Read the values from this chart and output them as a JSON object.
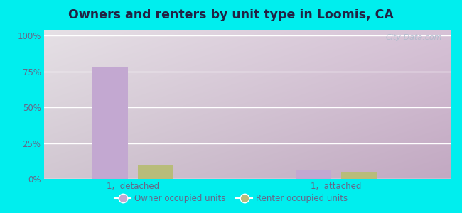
{
  "title": "Owners and renters by unit type in Loomis, CA",
  "categories": [
    "1,  detached",
    "1,  attached"
  ],
  "owner_values": [
    78,
    6
  ],
  "renter_values": [
    10,
    5
  ],
  "owner_color": "#c3a8d1",
  "renter_color": "#b8bc7a",
  "outer_bg": "#00eeee",
  "yticks": [
    0,
    25,
    50,
    75,
    100
  ],
  "ytick_labels": [
    "0%",
    "25%",
    "50%",
    "75%",
    "100%"
  ],
  "ylim": [
    0,
    104
  ],
  "bar_width": 0.28,
  "group_positions": [
    1.0,
    2.6
  ],
  "watermark": "City-Data.com",
  "legend_owner": "Owner occupied units",
  "legend_renter": "Renter occupied units",
  "title_color": "#222244",
  "tick_color": "#666688"
}
